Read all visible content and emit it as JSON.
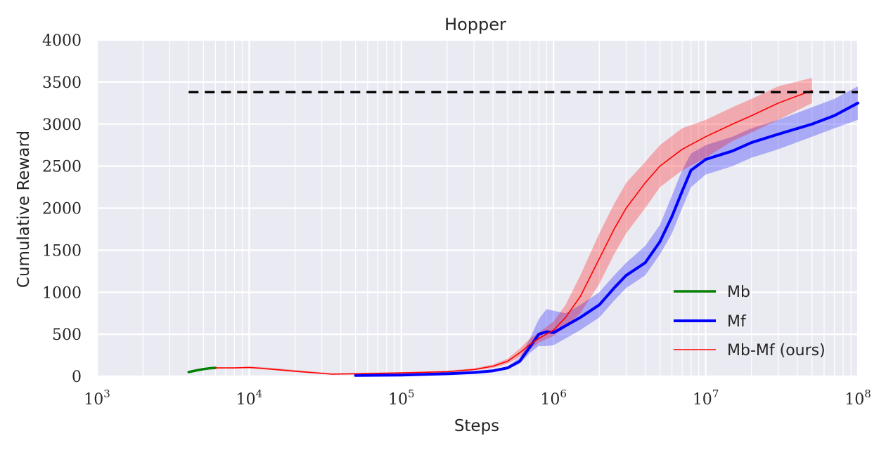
{
  "chart_data": {
    "type": "line",
    "title": "Hopper",
    "xlabel": "Steps",
    "ylabel": "Cumulative Reward",
    "xscale": "log",
    "xlim": [
      1000,
      100000000
    ],
    "ylim": [
      0,
      4000
    ],
    "xticks": [
      {
        "value": 1000,
        "base": "10",
        "exp": "3"
      },
      {
        "value": 10000,
        "base": "10",
        "exp": "4"
      },
      {
        "value": 100000,
        "base": "10",
        "exp": "5"
      },
      {
        "value": 1000000,
        "base": "10",
        "exp": "6"
      },
      {
        "value": 10000000,
        "base": "10",
        "exp": "7"
      },
      {
        "value": 100000000,
        "base": "10",
        "exp": "8"
      }
    ],
    "yticks": [
      "0",
      "500",
      "1000",
      "1500",
      "2000",
      "2500",
      "3000",
      "3500",
      "4000"
    ],
    "grid": true,
    "background": "#eaeaf2",
    "legend_position": "lower-right",
    "series": [
      {
        "name": "Mb",
        "color": "#008000",
        "line_style": "solid",
        "x": [
          4000,
          4500,
          5000,
          5500,
          6000
        ],
        "y": [
          50,
          70,
          85,
          95,
          100
        ],
        "band_low": [
          45,
          65,
          80,
          90,
          95
        ],
        "band_high": [
          55,
          75,
          90,
          100,
          105
        ]
      },
      {
        "name": "Mf",
        "color": "#0000ff",
        "line_style": "solid",
        "x": [
          50000,
          100000,
          200000,
          300000,
          400000,
          500000,
          600000,
          700000,
          800000,
          900000,
          1000000,
          1200000,
          1500000,
          2000000,
          2500000,
          3000000,
          4000000,
          5000000,
          6000000,
          7000000,
          8000000,
          10000000,
          15000000,
          20000000,
          30000000,
          50000000,
          70000000,
          100000000
        ],
        "y": [
          10,
          15,
          30,
          45,
          65,
          100,
          180,
          350,
          500,
          530,
          520,
          600,
          700,
          850,
          1050,
          1200,
          1350,
          1600,
          1900,
          2200,
          2450,
          2580,
          2680,
          2780,
          2880,
          3000,
          3100,
          3250
        ],
        "band_low": [
          5,
          10,
          25,
          40,
          55,
          85,
          150,
          280,
          360,
          360,
          370,
          450,
          550,
          700,
          900,
          1050,
          1200,
          1450,
          1700,
          2000,
          2250,
          2400,
          2500,
          2600,
          2700,
          2850,
          2950,
          3050
        ],
        "band_high": [
          15,
          20,
          35,
          50,
          75,
          120,
          220,
          450,
          680,
          800,
          780,
          750,
          850,
          1000,
          1200,
          1350,
          1550,
          1800,
          2150,
          2450,
          2650,
          2750,
          2850,
          2950,
          3050,
          3200,
          3300,
          3450
        ]
      },
      {
        "name": "Mb-Mf (ours)",
        "color": "#ff0000",
        "line_style": "solid",
        "x": [
          6000,
          8000,
          10000,
          12000,
          20000,
          35000,
          50000,
          100000,
          200000,
          300000,
          400000,
          500000,
          600000,
          700000,
          800000,
          1000000,
          1200000,
          1500000,
          2000000,
          2500000,
          3000000,
          4000000,
          5000000,
          7000000,
          10000000,
          15000000,
          20000000,
          30000000,
          50000000
        ],
        "y": [
          100,
          100,
          105,
          95,
          60,
          25,
          30,
          40,
          55,
          80,
          120,
          180,
          280,
          380,
          450,
          550,
          700,
          950,
          1400,
          1750,
          2000,
          2300,
          2500,
          2700,
          2850,
          3000,
          3100,
          3250,
          3400
        ],
        "band_low": [
          95,
          95,
          95,
          85,
          50,
          20,
          25,
          35,
          50,
          70,
          100,
          150,
          230,
          320,
          400,
          480,
          580,
          750,
          1100,
          1450,
          1700,
          2000,
          2250,
          2450,
          2600,
          2800,
          2900,
          3050,
          3250
        ],
        "band_high": [
          105,
          105,
          115,
          110,
          75,
          35,
          40,
          50,
          65,
          95,
          140,
          210,
          330,
          450,
          520,
          650,
          850,
          1200,
          1700,
          2050,
          2300,
          2550,
          2750,
          2950,
          3050,
          3200,
          3300,
          3450,
          3550
        ]
      }
    ],
    "reference_line": {
      "style": "dashed",
      "color": "#000000",
      "x_start": 4000,
      "x_end": 100000000,
      "y": 3380
    }
  }
}
